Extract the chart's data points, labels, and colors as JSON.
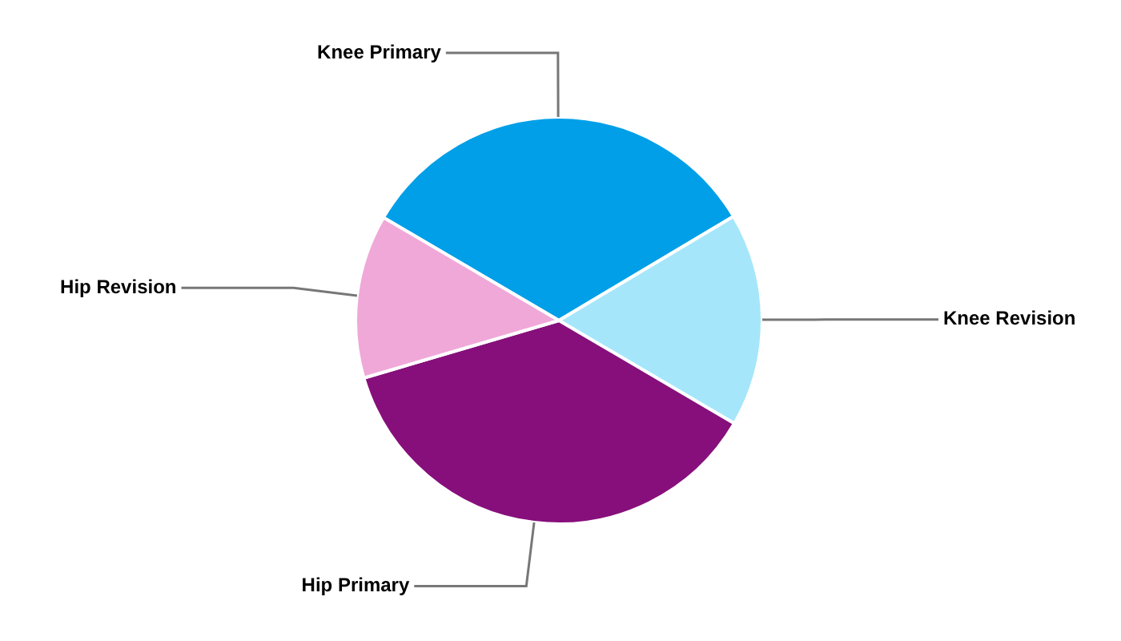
{
  "chart_data": {
    "type": "pie",
    "categories": [
      "Knee Primary",
      "Knee Revision",
      "Hip Primary",
      "Hip Revision"
    ],
    "values": [
      33,
      17,
      37,
      13
    ],
    "colors": [
      "#009fe8",
      "#a6e6fb",
      "#870f7b",
      "#f0a8d8"
    ],
    "legend": false
  }
}
